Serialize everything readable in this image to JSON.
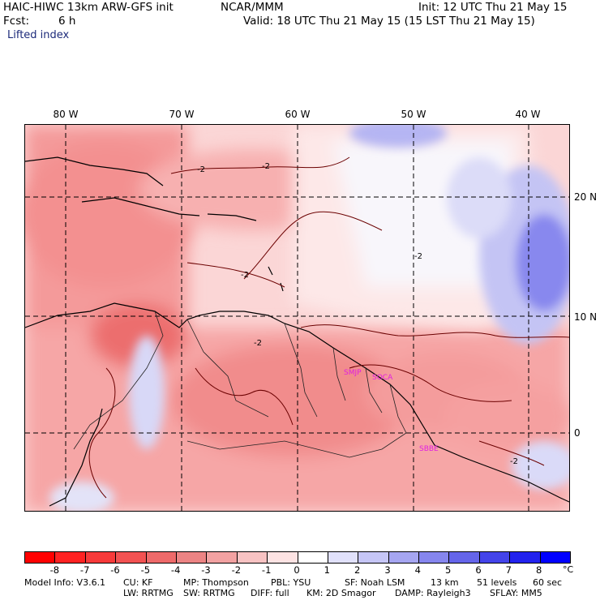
{
  "header": {
    "model": "HAIC-HIWC 13km ARW-GFS init",
    "org": "NCAR/MMM",
    "init": "Init: 12 UTC Thu 21 May 15",
    "fcst_label": "Fcst:",
    "fcst_value": "6 h",
    "valid": "Valid: 18 UTC Thu 21 May 15 (15 LST Thu 21 May 15)",
    "field": "Lifted index"
  },
  "map": {
    "lon_labels": [
      "80 W",
      "70 W",
      "60 W",
      "50 W",
      "40 W"
    ],
    "lat_labels": [
      "20 N",
      "10 N",
      "0"
    ],
    "contour_labels": [
      "-2",
      "-2",
      "-2",
      "-2",
      "-2",
      "-2"
    ],
    "station_labels": [
      "SMJP",
      "SOCA",
      "SBBE"
    ],
    "station_color": "#e020e0"
  },
  "colorbar": {
    "labels": [
      "-8",
      "-7",
      "-6",
      "-5",
      "-4",
      "-3",
      "-2",
      "-1",
      "0",
      "1",
      "2",
      "3",
      "4",
      "5",
      "6",
      "7",
      "8"
    ],
    "unit": "°C",
    "colors": [
      "#ff0000",
      "#ff2222",
      "#f73a3a",
      "#f25252",
      "#ee6a6a",
      "#ec8484",
      "#f2a2a2",
      "#f8c3c3",
      "#fde3e3",
      "#ffffff",
      "#e1e1fb",
      "#c6c6f6",
      "#a6a6f1",
      "#8686ee",
      "#6565ea",
      "#4444ea",
      "#2222ee",
      "#0000ff"
    ]
  },
  "footer": {
    "line1": [
      "Model Info: V3.6.1",
      "CU: KF",
      "MP: Thompson",
      "PBL: YSU",
      "SF: Noah LSM",
      "13 km",
      "51 levels",
      "60 sec"
    ],
    "line2": [
      "LW: RRTMG",
      "SW: RRTMG",
      "DIFF: full",
      "KM: 2D Smagor",
      "DAMP: Rayleigh3",
      "SFLAY: MM5"
    ]
  }
}
